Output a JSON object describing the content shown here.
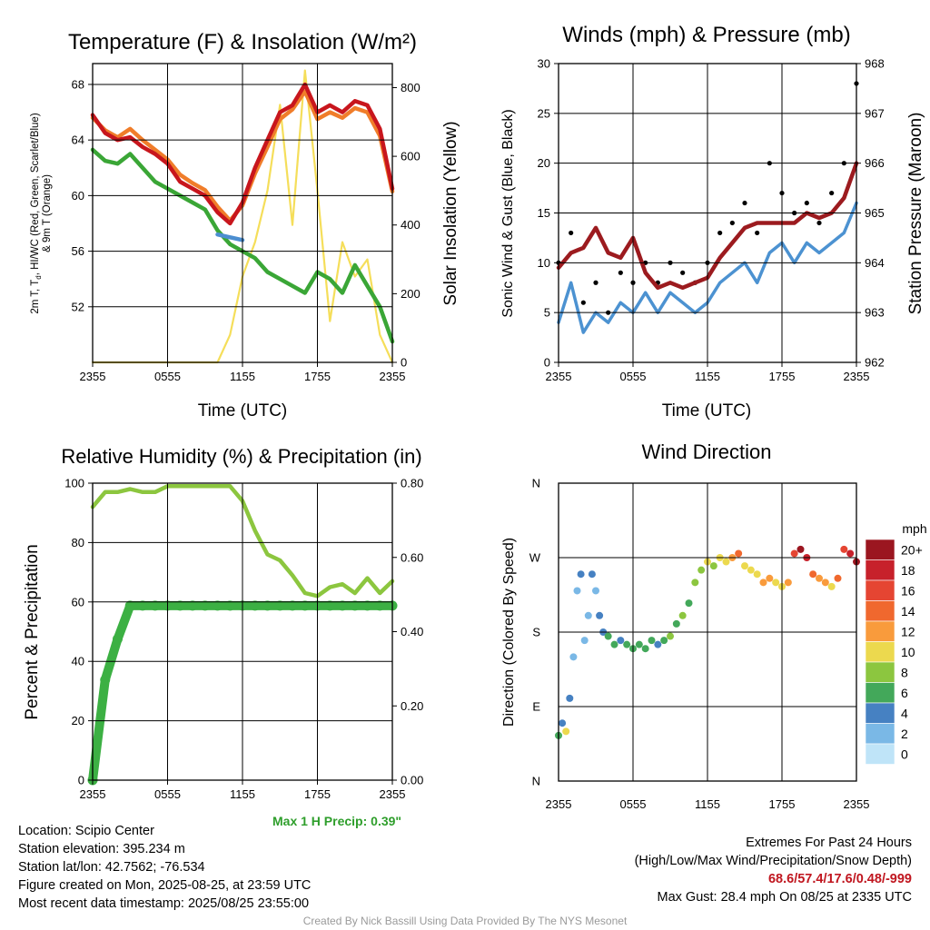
{
  "panels": {
    "temp": {
      "title": "Temperature (F) & Insolation (W/m²)",
      "ylabel_left_line1": "2m T, T",
      "ylabel_left_line1b": "d",
      "ylabel_left_line1c": ", HI/WC (Red, Green, Scarlet/Blue)",
      "ylabel_left_line2": "& 9m T (Orange)",
      "ylabel_right": "Solar Insolation (Yellow)",
      "xlabel": "Time (UTC)"
    },
    "wind": {
      "title": "Winds (mph) & Pressure (mb)",
      "ylabel_left": "Sonic Wind & Gust (Blue, Black)",
      "ylabel_right": "Station Pressure (Maroon)",
      "xlabel": "Time (UTC)"
    },
    "rh": {
      "title": "Relative Humidity (%) & Precipitation (in)",
      "ylabel_left": "Percent & Precipitation",
      "max_precip": "Max 1 H Precip: 0.39\""
    },
    "dir": {
      "title": "Wind Direction",
      "ylabel_left": "Direction (Colored By Speed)",
      "colorbar_title": "mph"
    }
  },
  "info_left": [
    "Location: Scipio Center",
    "Station elevation: 395.234 m",
    "Station lat/lon: 42.7562; -76.534",
    "Figure created on Mon, 2025-08-25, at 23:59 UTC",
    "Most recent data timestamp: 2025/08/25 23:55:00"
  ],
  "info_right": {
    "line1": "Extremes For Past 24 Hours",
    "line2": "(High/Low/Max Wind/Precipitation/Snow Depth)",
    "values": "68.6/57.4/17.6/0.48/-999",
    "gust": "Max Gust: 28.4 mph On 08/25 at 2335 UTC"
  },
  "credit": "Created By Nick Bassill Using Data Provided By The NYS Mesonet",
  "chart_data": [
    {
      "type": "line",
      "title": "Temperature (F) & Insolation (W/m²)",
      "xlabel": "Time (UTC)",
      "xticks": [
        "2355",
        "0555",
        "1155",
        "1755",
        "2355"
      ],
      "x_hours": [
        0,
        1,
        2,
        3,
        4,
        5,
        6,
        7,
        8,
        9,
        10,
        11,
        12,
        13,
        14,
        15,
        16,
        17,
        18,
        19,
        20,
        21,
        22,
        23,
        24
      ],
      "ylim_left": [
        48,
        69.5
      ],
      "yticks_left": [
        52,
        56,
        60,
        64,
        68
      ],
      "ylim_right": [
        0,
        870
      ],
      "yticks_right": [
        0,
        200,
        400,
        600,
        800
      ],
      "series": [
        {
          "name": "2m T",
          "color": "#c8161d",
          "axis": "left",
          "values": [
            65.8,
            64.5,
            64.0,
            64.2,
            63.5,
            63.0,
            62.3,
            61.0,
            60.5,
            60.0,
            58.8,
            58.0,
            59.5,
            62.0,
            64.0,
            66.0,
            66.5,
            68.0,
            66.0,
            66.5,
            66.0,
            66.8,
            66.5,
            64.8,
            60.5
          ]
        },
        {
          "name": "9m T",
          "color": "#f07d2a",
          "axis": "left",
          "values": [
            65.6,
            64.7,
            64.2,
            64.8,
            64.0,
            63.3,
            62.6,
            61.5,
            60.9,
            60.4,
            59.2,
            58.2,
            59.3,
            61.6,
            63.5,
            65.5,
            66.2,
            67.5,
            65.5,
            66.0,
            65.6,
            66.3,
            66.0,
            64.3,
            60.3
          ]
        },
        {
          "name": "Td",
          "color": "#3aa636",
          "axis": "left",
          "values": [
            63.3,
            62.5,
            62.3,
            63.0,
            62.0,
            61.0,
            60.5,
            60.0,
            59.5,
            59.0,
            57.5,
            56.5,
            56.0,
            55.5,
            54.5,
            54.0,
            53.5,
            53.0,
            54.5,
            54.0,
            53.0,
            55.0,
            53.5,
            52.0,
            49.5
          ]
        },
        {
          "name": "HI/WC",
          "color": "#4c8ed0",
          "axis": "left",
          "values": [
            null,
            null,
            null,
            null,
            null,
            null,
            null,
            null,
            null,
            null,
            57.2,
            57.0,
            56.8,
            null,
            null,
            null,
            null,
            null,
            null,
            null,
            null,
            null,
            null,
            null,
            null
          ]
        },
        {
          "name": "Solar",
          "color": "#f5de5a",
          "axis": "right",
          "values": [
            0,
            0,
            0,
            0,
            0,
            0,
            0,
            0,
            0,
            0,
            0,
            80,
            250,
            350,
            500,
            750,
            400,
            850,
            500,
            120,
            350,
            250,
            300,
            80,
            0
          ]
        }
      ]
    },
    {
      "type": "line",
      "title": "Winds (mph) & Pressure (mb)",
      "xlabel": "Time (UTC)",
      "xticks": [
        "2355",
        "0555",
        "1155",
        "1755",
        "2355"
      ],
      "x_hours": [
        0,
        1,
        2,
        3,
        4,
        5,
        6,
        7,
        8,
        9,
        10,
        11,
        12,
        13,
        14,
        15,
        16,
        17,
        18,
        19,
        20,
        21,
        22,
        23,
        24
      ],
      "ylim_left": [
        0,
        30
      ],
      "yticks_left": [
        0,
        5,
        10,
        15,
        20,
        25,
        30
      ],
      "ylim_right": [
        962,
        968
      ],
      "yticks_right": [
        962,
        963,
        964,
        965,
        966,
        967,
        968
      ],
      "series": [
        {
          "name": "Sonic Wind",
          "color": "#4c92d1",
          "axis": "left",
          "values": [
            4,
            8,
            3,
            5,
            4,
            6,
            5,
            7,
            5,
            7,
            6,
            5,
            6,
            8,
            9,
            10,
            8,
            11,
            12,
            10,
            12,
            11,
            12,
            13,
            16
          ]
        },
        {
          "name": "Gust",
          "color": "#000000",
          "axis": "left",
          "values": [
            10,
            13,
            6,
            8,
            5,
            9,
            8,
            10,
            8,
            10,
            9,
            8,
            10,
            13,
            14,
            16,
            13,
            20,
            17,
            15,
            16,
            14,
            17,
            20,
            28
          ]
        },
        {
          "name": "Station Pressure",
          "color": "#9c1b1f",
          "axis": "right",
          "values": [
            963.9,
            964.2,
            964.3,
            964.7,
            964.2,
            964.1,
            964.5,
            963.8,
            963.5,
            963.6,
            963.5,
            963.6,
            963.7,
            964.1,
            964.4,
            964.7,
            964.8,
            964.8,
            964.8,
            964.8,
            965.0,
            964.9,
            965.0,
            965.3,
            966.0
          ]
        }
      ]
    },
    {
      "type": "line",
      "title": "Relative Humidity (%) & Precipitation (in)",
      "xticks": [
        "2355",
        "0555",
        "1155",
        "1755",
        "2355"
      ],
      "x_hours": [
        0,
        1,
        2,
        3,
        4,
        5,
        6,
        7,
        8,
        9,
        10,
        11,
        12,
        13,
        14,
        15,
        16,
        17,
        18,
        19,
        20,
        21,
        22,
        23,
        24
      ],
      "ylim_left": [
        0,
        100
      ],
      "yticks_left": [
        0,
        20,
        40,
        60,
        80,
        100
      ],
      "ylim_right": [
        0,
        0.8
      ],
      "yticks_right": [
        "0.00",
        "0.20",
        "0.40",
        "0.60",
        "0.80"
      ],
      "series": [
        {
          "name": "RH",
          "color": "#8cc63f",
          "axis": "left",
          "values": [
            92,
            97,
            97,
            98,
            97,
            97,
            99,
            99,
            99,
            99,
            99,
            99,
            94,
            84,
            76,
            74,
            69,
            63,
            62,
            65,
            66,
            63,
            68,
            63,
            67
          ]
        },
        {
          "name": "Precipitation",
          "color": "#3cb043",
          "axis": "right",
          "values": [
            0,
            0.27,
            0.38,
            0.47,
            0.47,
            0.47,
            0.47,
            0.47,
            0.47,
            0.47,
            0.47,
            0.47,
            0.47,
            0.47,
            0.47,
            0.47,
            0.47,
            0.47,
            0.47,
            0.47,
            0.47,
            0.47,
            0.47,
            0.47,
            0.47
          ]
        }
      ]
    },
    {
      "type": "scatter",
      "title": "Wind Direction",
      "xticks": [
        "2355",
        "0555",
        "1155",
        "1755",
        "2355"
      ],
      "yticks": [
        "N",
        "E",
        "S",
        "W",
        "N"
      ],
      "y_degrees": [
        0,
        90,
        180,
        270,
        360
      ],
      "colorbar": {
        "title": "mph",
        "labels": [
          "20+",
          "18",
          "16",
          "14",
          "12",
          "10",
          "8",
          "6",
          "4",
          "2",
          "0"
        ],
        "colors": [
          "#9b1620",
          "#c7212b",
          "#e54532",
          "#f0682e",
          "#f99b3c",
          "#ecd94e",
          "#8cc63f",
          "#43a85a",
          "#4681c2",
          "#7ab8e6",
          "#bfe4f8"
        ]
      },
      "points": [
        {
          "x": 0.0,
          "dir": 55,
          "speed": 6
        },
        {
          "x": 0.3,
          "dir": 70,
          "speed": 4
        },
        {
          "x": 0.6,
          "dir": 60,
          "speed": 9
        },
        {
          "x": 0.9,
          "dir": 100,
          "speed": 3
        },
        {
          "x": 1.2,
          "dir": 150,
          "speed": 2
        },
        {
          "x": 1.5,
          "dir": 230,
          "speed": 2
        },
        {
          "x": 1.8,
          "dir": 250,
          "speed": 4
        },
        {
          "x": 2.1,
          "dir": 170,
          "speed": 2
        },
        {
          "x": 2.4,
          "dir": 200,
          "speed": 2
        },
        {
          "x": 2.7,
          "dir": 250,
          "speed": 3
        },
        {
          "x": 3.0,
          "dir": 230,
          "speed": 2
        },
        {
          "x": 3.3,
          "dir": 200,
          "speed": 3
        },
        {
          "x": 3.6,
          "dir": 180,
          "speed": 4
        },
        {
          "x": 4.0,
          "dir": 175,
          "speed": 5
        },
        {
          "x": 4.5,
          "dir": 165,
          "speed": 6
        },
        {
          "x": 5.0,
          "dir": 170,
          "speed": 4
        },
        {
          "x": 5.5,
          "dir": 165,
          "speed": 5
        },
        {
          "x": 6.0,
          "dir": 160,
          "speed": 6
        },
        {
          "x": 6.5,
          "dir": 165,
          "speed": 6
        },
        {
          "x": 7.0,
          "dir": 160,
          "speed": 5
        },
        {
          "x": 7.5,
          "dir": 170,
          "speed": 6
        },
        {
          "x": 8.0,
          "dir": 165,
          "speed": 4
        },
        {
          "x": 8.5,
          "dir": 170,
          "speed": 6
        },
        {
          "x": 9.0,
          "dir": 175,
          "speed": 7
        },
        {
          "x": 9.5,
          "dir": 190,
          "speed": 6
        },
        {
          "x": 10.0,
          "dir": 200,
          "speed": 7
        },
        {
          "x": 10.5,
          "dir": 215,
          "speed": 6
        },
        {
          "x": 11.0,
          "dir": 240,
          "speed": 7
        },
        {
          "x": 11.5,
          "dir": 255,
          "speed": 8
        },
        {
          "x": 12.0,
          "dir": 265,
          "speed": 9
        },
        {
          "x": 12.5,
          "dir": 260,
          "speed": 8
        },
        {
          "x": 13.0,
          "dir": 270,
          "speed": 10
        },
        {
          "x": 13.5,
          "dir": 265,
          "speed": 9
        },
        {
          "x": 14.0,
          "dir": 270,
          "speed": 12
        },
        {
          "x": 14.5,
          "dir": 275,
          "speed": 14
        },
        {
          "x": 15.0,
          "dir": 260,
          "speed": 10
        },
        {
          "x": 15.5,
          "dir": 255,
          "speed": 9
        },
        {
          "x": 16.0,
          "dir": 250,
          "speed": 10
        },
        {
          "x": 16.5,
          "dir": 240,
          "speed": 11
        },
        {
          "x": 17.0,
          "dir": 245,
          "speed": 12
        },
        {
          "x": 17.5,
          "dir": 240,
          "speed": 10
        },
        {
          "x": 18.0,
          "dir": 235,
          "speed": 9
        },
        {
          "x": 18.5,
          "dir": 240,
          "speed": 12
        },
        {
          "x": 19.0,
          "dir": 275,
          "speed": 16
        },
        {
          "x": 19.5,
          "dir": 280,
          "speed": 20
        },
        {
          "x": 20.0,
          "dir": 270,
          "speed": 17
        },
        {
          "x": 20.5,
          "dir": 250,
          "speed": 13
        },
        {
          "x": 21.0,
          "dir": 245,
          "speed": 11
        },
        {
          "x": 21.5,
          "dir": 240,
          "speed": 12
        },
        {
          "x": 22.0,
          "dir": 235,
          "speed": 10
        },
        {
          "x": 22.5,
          "dir": 245,
          "speed": 14
        },
        {
          "x": 23.0,
          "dir": 280,
          "speed": 15
        },
        {
          "x": 23.5,
          "dir": 275,
          "speed": 18
        },
        {
          "x": 24.0,
          "dir": 265,
          "speed": 20
        }
      ]
    }
  ]
}
